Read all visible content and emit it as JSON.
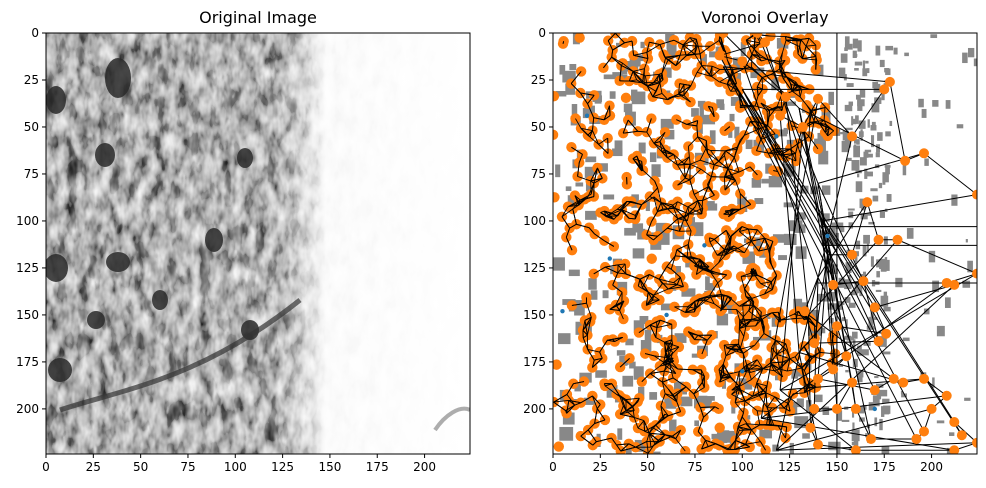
{
  "chart_data": [
    {
      "type": "image",
      "title": "Original Image",
      "xlim": [
        0,
        224
      ],
      "ylim": [
        224,
        0
      ],
      "xticks": [
        0,
        25,
        50,
        75,
        100,
        125,
        150,
        175,
        200
      ],
      "yticks": [
        0,
        25,
        50,
        75,
        100,
        125,
        150,
        175,
        200
      ],
      "colormap": "grayscale",
      "content": "tissue micrograph, dark textured left region, bright right region"
    },
    {
      "type": "scatter",
      "title": "Voronoi Overlay",
      "xlim": [
        0,
        224
      ],
      "ylim": [
        224,
        0
      ],
      "xticks": [
        0,
        25,
        50,
        75,
        100,
        125,
        150,
        175,
        200
      ],
      "yticks": [
        0,
        25,
        50,
        75,
        100,
        125,
        150,
        175,
        200
      ],
      "grid": false,
      "series": [
        {
          "values": "voronoi_vertices",
          "color": "#ff7f0e",
          "points": [
            [
              90,
              0
            ],
            [
              108,
              0
            ],
            [
              112,
              5
            ],
            [
              88,
              12
            ],
            [
              100,
              15
            ],
            [
              123,
              34
            ],
            [
              120,
              44
            ],
            [
              132,
              50
            ],
            [
              140,
              35
            ],
            [
              158,
              55
            ],
            [
              175,
              30
            ],
            [
              178,
              26
            ],
            [
              186,
              68
            ],
            [
              196,
              64
            ],
            [
              224,
              86
            ],
            [
              158,
              118
            ],
            [
              166,
              90
            ],
            [
              172,
              110
            ],
            [
              182,
              110
            ],
            [
              224,
              128
            ],
            [
              208,
              133
            ],
            [
              212,
              134
            ],
            [
              170,
              146
            ],
            [
              176,
              160
            ],
            [
              150,
              156
            ],
            [
              155,
              172
            ],
            [
              148,
              179
            ],
            [
              140,
              184
            ],
            [
              170,
              190
            ],
            [
              180,
              184
            ],
            [
              185,
              186
            ],
            [
              196,
              184
            ],
            [
              208,
              193
            ],
            [
              200,
              200
            ],
            [
              196,
              212
            ],
            [
              192,
              216
            ],
            [
              168,
              216
            ],
            [
              160,
              200
            ],
            [
              158,
              186
            ],
            [
              150,
              200
            ],
            [
              138,
              200
            ],
            [
              136,
              210
            ],
            [
              140,
              219
            ],
            [
              160,
              222
            ],
            [
              212,
              222
            ],
            [
              224,
              218
            ],
            [
              212,
              207
            ],
            [
              216,
              214
            ],
            [
              148,
              134
            ],
            [
              164,
              132
            ],
            [
              172,
              164
            ],
            [
              138,
              165
            ],
            [
              133,
              148
            ]
          ]
        },
        {
          "values": "generator_points",
          "color": "#1f77b4",
          "points": [
            [
              80,
              113
            ],
            [
              145,
              108
            ],
            [
              170,
              200
            ],
            [
              60,
              150
            ],
            [
              5,
              148
            ],
            [
              30,
              120
            ],
            [
              18,
              44
            ],
            [
              118,
              55
            ],
            [
              100,
              180
            ]
          ]
        }
      ],
      "dense_region": {
        "x": [
          0,
          150
        ],
        "y": [
          0,
          224
        ],
        "color": "#ff7f0e"
      },
      "background_mask_color": "#888888"
    }
  ]
}
